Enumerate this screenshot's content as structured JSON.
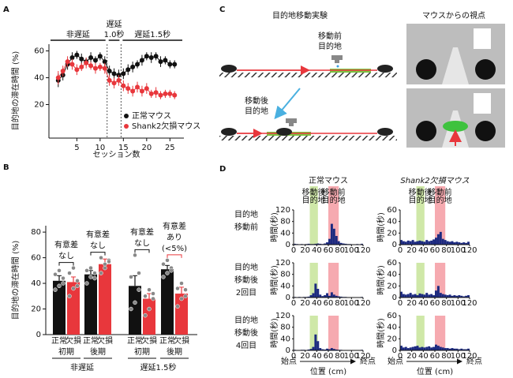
{
  "panel_labels": [
    "A",
    "B",
    "C",
    "D"
  ],
  "chart_data": [
    {
      "type": "line",
      "ylabel": "目的地の滞在時間 (%)",
      "xlabel": "セッション数",
      "phases": [
        {
          "label": [
            "非遅延"
          ]
        },
        {
          "label": [
            "遅延",
            "1.0秒"
          ]
        },
        {
          "label": [
            "遅延1.5秒"
          ]
        }
      ],
      "phase_breaks": [
        11.5,
        14.5
      ],
      "x": [
        1,
        2,
        3,
        4,
        5,
        6,
        7,
        8,
        9,
        10,
        11,
        12,
        13,
        14,
        15,
        16,
        17,
        18,
        19,
        20,
        21,
        22,
        23,
        24,
        25,
        26
      ],
      "xlim": [
        -1,
        28
      ],
      "xticks": [
        5,
        10,
        15,
        20,
        25
      ],
      "ylim": [
        -5,
        65
      ],
      "yticks": [
        20,
        40,
        60
      ],
      "series": [
        {
          "name": "正常マウス",
          "color": "#111111",
          "values": [
            38,
            42,
            50,
            55,
            57,
            54,
            52,
            55,
            53,
            56,
            52,
            45,
            43,
            42,
            43,
            46,
            48,
            50,
            53,
            56,
            55,
            56,
            52,
            53,
            50,
            50
          ],
          "errors": [
            5,
            4,
            4,
            4,
            3,
            4,
            3,
            4,
            3,
            3,
            4,
            4,
            4,
            4,
            4,
            4,
            4,
            3,
            4,
            3,
            4,
            3,
            4,
            3,
            3,
            3
          ]
        },
        {
          "name": "Shank2欠損マウス",
          "color": "#e8373c",
          "values": [
            40,
            45,
            52,
            50,
            46,
            48,
            51,
            49,
            47,
            48,
            47,
            38,
            36,
            38,
            34,
            32,
            30,
            33,
            30,
            32,
            28,
            29,
            27,
            28,
            28,
            27
          ],
          "errors": [
            5,
            4,
            4,
            4,
            4,
            3,
            4,
            3,
            4,
            3,
            4,
            4,
            4,
            4,
            4,
            4,
            4,
            4,
            4,
            4,
            3,
            4,
            3,
            3,
            3,
            3
          ]
        }
      ]
    },
    {
      "type": "bar",
      "ylabel": "目的地の滞在時間 (%)",
      "categories": [
        "初期",
        "後期",
        "初期",
        "後期"
      ],
      "groups": [
        "非遅延",
        "遅延1.5秒"
      ],
      "ylim": [
        0,
        85
      ],
      "yticks": [
        0,
        20,
        40,
        60,
        80
      ],
      "series": [
        {
          "name": "正常",
          "color": "#111111",
          "values": [
            42,
            47,
            38,
            51
          ],
          "errors": [
            4,
            3,
            8,
            3
          ],
          "points": [
            [
              35,
              38,
              44,
              47,
              50,
              40
            ],
            [
              40,
              45,
              48,
              50,
              52,
              44
            ],
            [
              20,
              25,
              35,
              45,
              62,
              48
            ],
            [
              45,
              48,
              52,
              55,
              58,
              50
            ]
          ]
        },
        {
          "name": "欠損",
          "color": "#e8373c",
          "values": [
            41,
            55,
            28,
            32
          ],
          "errors": [
            4,
            4,
            4,
            5
          ],
          "points": [
            [
              30,
              36,
              42,
              48,
              52,
              38
            ],
            [
              48,
              52,
              58,
              60,
              55,
              57
            ],
            [
              15,
              20,
              28,
              30,
              35,
              32
            ],
            [
              22,
              28,
              30,
              36,
              40,
              35
            ]
          ]
        }
      ],
      "annotations": [
        {
          "lines": [
            "有意差",
            "なし"
          ],
          "color": "#111111"
        },
        {
          "lines": [
            "有意差",
            "なし"
          ],
          "color": "#111111"
        },
        {
          "lines": [
            "有意差",
            "なし"
          ],
          "color": "#111111"
        },
        {
          "lines": [
            "有意差",
            "あり",
            "(<5%)"
          ],
          "color": "#e8373c"
        }
      ]
    },
    {
      "type": "histogram",
      "ylabel": "時間(秒)",
      "color": "#1c2a80",
      "bins": [
        0,
        4,
        8,
        12,
        16,
        20,
        24,
        28,
        32,
        36,
        40,
        44,
        48,
        52,
        56,
        60,
        64,
        68,
        72,
        76,
        80,
        84,
        88,
        92,
        96,
        100,
        104,
        108,
        112,
        116,
        120
      ],
      "counts": [
        3,
        2,
        1,
        2,
        1,
        2,
        3,
        2,
        2,
        3,
        4,
        3,
        2,
        4,
        8,
        20,
        72,
        55,
        30,
        12,
        6,
        4,
        3,
        2,
        2,
        1,
        1,
        2,
        1,
        3
      ],
      "xlim": [
        0,
        120
      ],
      "xticks": [
        0,
        20,
        40,
        60,
        80,
        100,
        120
      ],
      "ylim": [
        0,
        120
      ],
      "yticks": [
        0,
        40,
        80,
        120
      ]
    },
    {
      "type": "histogram",
      "ylabel": "時間(秒)",
      "color": "#1c2a80",
      "bins": [
        0,
        4,
        8,
        12,
        16,
        20,
        24,
        28,
        32,
        36,
        40,
        44,
        48,
        52,
        56,
        60,
        64,
        68,
        72,
        76,
        80,
        84,
        88,
        92,
        96,
        100,
        104,
        108,
        112,
        116,
        120
      ],
      "counts": [
        8,
        6,
        5,
        7,
        6,
        8,
        5,
        6,
        7,
        6,
        5,
        8,
        6,
        7,
        9,
        12,
        18,
        22,
        10,
        8,
        6,
        5,
        6,
        4,
        5,
        4,
        3,
        4,
        3,
        5
      ],
      "xlim": [
        0,
        120
      ],
      "xticks": [
        0,
        20,
        40,
        60,
        80,
        100,
        120
      ],
      "ylim": [
        0,
        60
      ],
      "yticks": [
        0,
        20,
        40,
        60
      ]
    },
    {
      "type": "histogram",
      "ylabel": "時間(秒)",
      "color": "#1c2a80",
      "bins": [
        0,
        4,
        8,
        12,
        16,
        20,
        24,
        28,
        32,
        36,
        40,
        44,
        48,
        52,
        56,
        60,
        64,
        68,
        72,
        76,
        80,
        84,
        88,
        92,
        96,
        100,
        104,
        108,
        112,
        116,
        120
      ],
      "counts": [
        2,
        1,
        2,
        1,
        2,
        2,
        3,
        8,
        15,
        48,
        30,
        10,
        5,
        8,
        15,
        6,
        18,
        10,
        6,
        4,
        3,
        2,
        2,
        1,
        1,
        1,
        1,
        1,
        1,
        2
      ],
      "xlim": [
        0,
        120
      ],
      "xticks": [
        0,
        20,
        40,
        60,
        80,
        100,
        120
      ],
      "ylim": [
        0,
        120
      ],
      "yticks": [
        0,
        40,
        80,
        120
      ]
    },
    {
      "type": "histogram",
      "ylabel": "時間(秒)",
      "color": "#1c2a80",
      "bins": [
        0,
        4,
        8,
        12,
        16,
        20,
        24,
        28,
        32,
        36,
        40,
        44,
        48,
        52,
        56,
        60,
        64,
        68,
        72,
        76,
        80,
        84,
        88,
        92,
        96,
        100,
        104,
        108,
        112,
        116,
        120
      ],
      "counts": [
        10,
        6,
        5,
        6,
        8,
        5,
        6,
        4,
        7,
        6,
        5,
        8,
        5,
        6,
        4,
        12,
        20,
        8,
        6,
        5,
        4,
        5,
        3,
        4,
        3,
        4,
        3,
        2,
        3,
        4
      ],
      "xlim": [
        0,
        120
      ],
      "xticks": [
        0,
        20,
        40,
        60,
        80,
        100,
        120
      ],
      "ylim": [
        0,
        60
      ],
      "yticks": [
        0,
        20,
        40,
        60
      ]
    },
    {
      "type": "histogram",
      "ylabel": "時間(秒)",
      "color": "#1c2a80",
      "bins": [
        0,
        4,
        8,
        12,
        16,
        20,
        24,
        28,
        32,
        36,
        40,
        44,
        48,
        52,
        56,
        60,
        64,
        68,
        72,
        76,
        80,
        84,
        88,
        92,
        96,
        100,
        104,
        108,
        112,
        116,
        120
      ],
      "counts": [
        2,
        1,
        1,
        2,
        2,
        1,
        3,
        5,
        12,
        55,
        32,
        8,
        4,
        3,
        6,
        4,
        8,
        5,
        3,
        2,
        2,
        1,
        1,
        1,
        1,
        1,
        1,
        1,
        1,
        2
      ],
      "xlim": [
        0,
        120
      ],
      "xticks": [
        0,
        20,
        40,
        60,
        80,
        100,
        120
      ],
      "ylim": [
        0,
        120
      ],
      "yticks": [
        0,
        40,
        80,
        120
      ]
    },
    {
      "type": "histogram",
      "ylabel": "時間(秒)",
      "color": "#1c2a80",
      "bins": [
        0,
        4,
        8,
        12,
        16,
        20,
        24,
        28,
        32,
        36,
        40,
        44,
        48,
        52,
        56,
        60,
        64,
        68,
        72,
        76,
        80,
        84,
        88,
        92,
        96,
        100,
        104,
        108,
        112,
        116,
        120
      ],
      "counts": [
        8,
        5,
        6,
        4,
        5,
        6,
        7,
        8,
        5,
        6,
        5,
        6,
        7,
        5,
        6,
        10,
        8,
        6,
        5,
        4,
        4,
        3,
        4,
        3,
        3,
        2,
        3,
        2,
        2,
        3
      ],
      "xlim": [
        0,
        120
      ],
      "xticks": [
        0,
        20,
        40,
        60,
        80,
        100,
        120
      ],
      "ylim": [
        0,
        60
      ],
      "yticks": [
        0,
        20,
        40,
        60
      ]
    }
  ],
  "panel_c": {
    "title": "目的地移動実験",
    "view_title": "マウスからの視点",
    "before_target": [
      "移動前",
      "目的地"
    ],
    "after_target": [
      "移動後",
      "目的地"
    ]
  },
  "panel_d": {
    "columns": [
      "正常マウス",
      "Shank2欠損マウス"
    ],
    "rows": [
      [
        "目的地",
        "移動前"
      ],
      [
        "目的地",
        "移動後",
        "2回目"
      ],
      [
        "目的地",
        "移動後",
        "4回目"
      ]
    ],
    "zones": [
      {
        "label": [
          "移動後",
          "目的地"
        ],
        "range": [
          28,
          42
        ],
        "color": "#cfe8a8",
        "text_color": "#2e9a3a"
      },
      {
        "label": [
          "移動前",
          "目的地"
        ],
        "range": [
          60,
          78
        ],
        "color": "#f6aab0",
        "text_color": "#e8373c"
      }
    ],
    "start": "始点",
    "end": "終点",
    "xlabel": "位置 (cm)"
  }
}
